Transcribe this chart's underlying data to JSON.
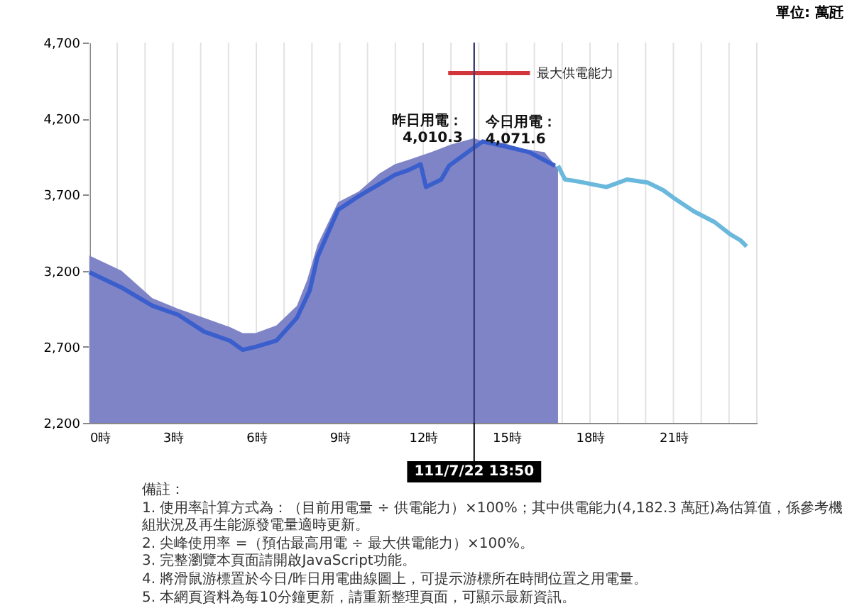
{
  "chart_data": {
    "type": "area",
    "xlim": [
      0,
      24
    ],
    "ylim": [
      2200,
      4700
    ],
    "xticks": [
      {
        "value": 0,
        "label": "0時"
      },
      {
        "value": 1,
        "label": null
      },
      {
        "value": 2,
        "label": null
      },
      {
        "value": 3,
        "label": "3時"
      },
      {
        "value": 4,
        "label": null
      },
      {
        "value": 5,
        "label": null
      },
      {
        "value": 6,
        "label": "6時"
      },
      {
        "value": 7,
        "label": null
      },
      {
        "value": 8,
        "label": null
      },
      {
        "value": 9,
        "label": "9時"
      },
      {
        "value": 10,
        "label": null
      },
      {
        "value": 11,
        "label": null
      },
      {
        "value": 12,
        "label": "12時"
      },
      {
        "value": 13,
        "label": null
      },
      {
        "value": 14,
        "label": null
      },
      {
        "value": 15,
        "label": "15時"
      },
      {
        "value": 16,
        "label": null
      },
      {
        "value": 17,
        "label": null
      },
      {
        "value": 18,
        "label": "18時"
      },
      {
        "value": 19,
        "label": null
      },
      {
        "value": 20,
        "label": null
      },
      {
        "value": 21,
        "label": "21時"
      },
      {
        "value": 22,
        "label": null
      },
      {
        "value": 23,
        "label": null
      },
      {
        "value": 24,
        "label": null
      }
    ],
    "yticks": [
      {
        "value": 2200,
        "label": "2,200"
      },
      {
        "value": 2700,
        "label": "2,700"
      },
      {
        "value": 3200,
        "label": "3,200"
      },
      {
        "value": 3700,
        "label": "3,700"
      },
      {
        "value": 4200,
        "label": "4,200"
      },
      {
        "value": 4700,
        "label": "4,700"
      }
    ],
    "grid": "x",
    "series": [
      {
        "color": "#7f84c6",
        "x": [
          0,
          1.15,
          2.26,
          3.19,
          4.12,
          5.05,
          5.51,
          5.97,
          6.72,
          7.46,
          7.83,
          8.2,
          8.94,
          9.68,
          10.43,
          10.98,
          11.5,
          12.3,
          13,
          13.8333,
          14.14,
          14.88,
          15.62,
          16.36,
          16.85
        ],
        "values": [
          3300,
          3200,
          3020,
          2950,
          2890,
          2830,
          2790,
          2790,
          2840,
          2970,
          3140,
          3370,
          3650,
          3720,
          3840,
          3900,
          3930,
          3980,
          4030,
          4071.6,
          4050,
          4040,
          4000,
          3980,
          3870
        ]
      },
      {
        "type": "line",
        "color": "#3a5fcd",
        "x": [
          0,
          1.15,
          2.26,
          3.19,
          4.12,
          5.05,
          5.51,
          5.97,
          6.72,
          7.46,
          7.92,
          8.2,
          8.94,
          9.68,
          10.43,
          10.98,
          11.45,
          11.91,
          12.1,
          12.65,
          12.93,
          13.8333,
          14.14,
          14.88,
          15.81,
          16.74
        ],
        "values": [
          3190,
          3090,
          2970,
          2910,
          2800,
          2740,
          2680,
          2700,
          2740,
          2890,
          3070,
          3290,
          3600,
          3690,
          3770,
          3830,
          3860,
          3900,
          3750,
          3800,
          3890,
          4010.3,
          4050,
          4020,
          3980,
          3890
        ]
      },
      {
        "type": "line",
        "color": "#6ab8dc",
        "x": [
          16.85,
          17.1,
          17.48,
          18.03,
          18.59,
          19.33,
          20.07,
          20.63,
          21.0,
          21.74,
          22.48,
          23.04,
          23.41,
          23.63
        ],
        "values": [
          3890,
          3800,
          3790,
          3770,
          3750,
          3800,
          3780,
          3730,
          3680,
          3590,
          3520,
          3440,
          3400,
          3360
        ]
      },
      {
        "type": "line",
        "name": "最大供電能力",
        "color": "#d0363c",
        "x": [
          12.9,
          15.84
        ],
        "values": [
          4500,
          4500
        ]
      }
    ],
    "ref_lines": [
      {
        "axis": "x",
        "value": 13.8333,
        "color": "#3c3f78"
      }
    ],
    "annotations": [
      "單位: 萬瓩",
      "今日用電：\n4,071.6",
      "昨日用電：\n4,010.3",
      "111/7/22 13:50",
      "備註：",
      "1. 使用率計算方式為：（目前用電量 ÷ 供電能力）×100%；其中供電能力(4,182.3 萬瓩)為估算值，係參考機組狀況及再生能源發電量適時更新。",
      "2. 尖峰使用率 =（預估最高用電 ÷ 最大供電能力）×100%。",
      "3. 完整瀏覽本頁面請開啟JavaScript功能。",
      "4. 將滑鼠游標置於今日/昨日用電曲線圖上，可提示游標所在時間位置之用電量。",
      "5. 本網頁資料為每10分鐘更新，請重新整理頁面，可顯示最新資訊。"
    ]
  }
}
